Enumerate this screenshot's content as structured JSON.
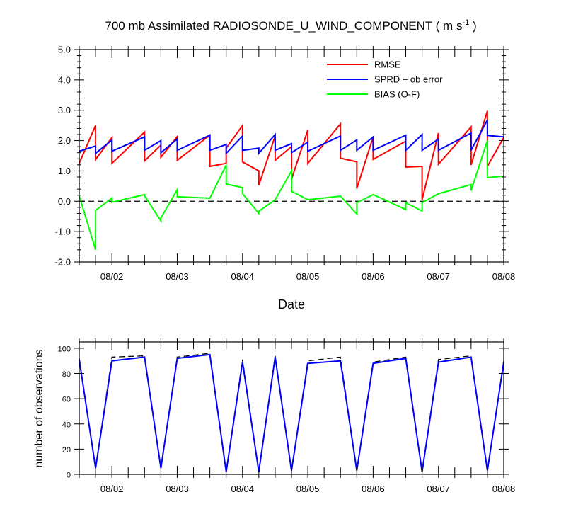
{
  "chart_data": [
    {
      "type": "line",
      "title": "700 mb Assimilated RADIOSONDE_U_WIND_COMPONENT ( m s",
      "title_sup": "-1",
      "title_end": " )",
      "xlabel": "Date",
      "ylabel": "",
      "xlim": [
        0.5,
        7.0
      ],
      "ylim": [
        -2.0,
        5.0
      ],
      "yticks": [
        -2,
        -1,
        0,
        1,
        2,
        3,
        4,
        5
      ],
      "ytick_labels": [
        "-2.0",
        "-1.0",
        "0.0",
        "1.0",
        "2.0",
        "3.0",
        "4.0",
        "5.0"
      ],
      "xticks": [
        1,
        2,
        3,
        4,
        5,
        6,
        7
      ],
      "xtick_labels": [
        "08/02",
        "08/03",
        "08/04",
        "08/05",
        "08/06",
        "08/07",
        "08/08"
      ],
      "zero_line": {
        "value": 0,
        "style": "dashed",
        "color": "#000000"
      },
      "legend_position": "top-right",
      "series": [
        {
          "name": "RMSE",
          "color": "#ff0000",
          "points": [
            [
              0.5,
              1.25
            ],
            [
              0.75,
              2.5
            ],
            [
              0.75,
              1.38
            ],
            [
              1.0,
              2.1
            ],
            [
              1.0,
              1.25
            ],
            [
              1.5,
              2.28
            ],
            [
              1.5,
              1.33
            ],
            [
              1.75,
              1.85
            ],
            [
              1.75,
              1.45
            ],
            [
              2.0,
              2.13
            ],
            [
              2.0,
              1.35
            ],
            [
              2.5,
              2.18
            ],
            [
              2.5,
              1.15
            ],
            [
              2.75,
              1.25
            ],
            [
              2.75,
              1.75
            ],
            [
              3.0,
              2.5
            ],
            [
              3.0,
              1.3
            ],
            [
              3.25,
              1.0
            ],
            [
              3.25,
              0.53
            ],
            [
              3.5,
              2.15
            ],
            [
              3.5,
              1.35
            ],
            [
              3.75,
              1.8
            ],
            [
              3.75,
              0.73
            ],
            [
              4.0,
              2.35
            ],
            [
              4.0,
              1.25
            ],
            [
              4.5,
              2.55
            ],
            [
              4.5,
              1.42
            ],
            [
              4.75,
              1.3
            ],
            [
              4.75,
              0.42
            ],
            [
              5.0,
              2.12
            ],
            [
              5.0,
              1.38
            ],
            [
              5.5,
              1.98
            ],
            [
              5.5,
              1.13
            ],
            [
              5.75,
              1.15
            ],
            [
              5.75,
              0.05
            ],
            [
              6.0,
              2.25
            ],
            [
              6.0,
              1.22
            ],
            [
              6.5,
              2.45
            ],
            [
              6.5,
              1.2
            ],
            [
              6.75,
              2.98
            ],
            [
              6.75,
              1.15
            ],
            [
              7.0,
              2.1
            ]
          ]
        },
        {
          "name": "SPRD + ob error",
          "color": "#0000ff",
          "points": [
            [
              0.5,
              1.65
            ],
            [
              0.75,
              1.82
            ],
            [
              0.75,
              1.58
            ],
            [
              1.0,
              2.02
            ],
            [
              1.0,
              1.65
            ],
            [
              1.5,
              2.12
            ],
            [
              1.5,
              1.68
            ],
            [
              1.75,
              2.0
            ],
            [
              1.75,
              1.6
            ],
            [
              2.0,
              2.05
            ],
            [
              2.0,
              1.68
            ],
            [
              2.5,
              2.18
            ],
            [
              2.5,
              1.68
            ],
            [
              2.75,
              1.87
            ],
            [
              2.75,
              1.58
            ],
            [
              3.0,
              2.15
            ],
            [
              3.0,
              1.68
            ],
            [
              3.25,
              1.75
            ],
            [
              3.25,
              1.58
            ],
            [
              3.5,
              2.2
            ],
            [
              3.5,
              1.68
            ],
            [
              3.75,
              1.9
            ],
            [
              3.75,
              1.6
            ],
            [
              4.0,
              1.95
            ],
            [
              4.0,
              1.65
            ],
            [
              4.5,
              2.15
            ],
            [
              4.5,
              1.68
            ],
            [
              4.75,
              2.02
            ],
            [
              4.75,
              1.68
            ],
            [
              5.0,
              2.12
            ],
            [
              5.0,
              1.68
            ],
            [
              5.5,
              2.18
            ],
            [
              5.5,
              1.68
            ],
            [
              5.75,
              2.2
            ],
            [
              5.75,
              1.68
            ],
            [
              6.0,
              2.05
            ],
            [
              6.0,
              1.68
            ],
            [
              6.5,
              2.25
            ],
            [
              6.5,
              1.68
            ],
            [
              6.75,
              2.68
            ],
            [
              6.75,
              2.17
            ],
            [
              7.0,
              2.12
            ]
          ]
        },
        {
          "name": "BIAS (O-F)",
          "color": "#00ff00",
          "points": [
            [
              0.5,
              0.18
            ],
            [
              0.75,
              -1.6
            ],
            [
              0.75,
              -0.3
            ],
            [
              1.0,
              0.1
            ],
            [
              1.0,
              -0.03
            ],
            [
              1.5,
              0.22
            ],
            [
              1.5,
              0.18
            ],
            [
              1.75,
              -0.65
            ],
            [
              1.75,
              -0.55
            ],
            [
              2.0,
              0.38
            ],
            [
              2.0,
              0.15
            ],
            [
              2.5,
              0.1
            ],
            [
              2.75,
              1.2
            ],
            [
              2.75,
              0.57
            ],
            [
              3.0,
              0.45
            ],
            [
              3.0,
              0.25
            ],
            [
              3.25,
              -0.4
            ],
            [
              3.25,
              -0.33
            ],
            [
              3.5,
              0.05
            ],
            [
              3.75,
              1.0
            ],
            [
              3.75,
              0.33
            ],
            [
              4.0,
              0.05
            ],
            [
              4.5,
              0.17
            ],
            [
              4.75,
              -0.42
            ],
            [
              4.75,
              -0.05
            ],
            [
              5.0,
              0.22
            ],
            [
              5.5,
              -0.27
            ],
            [
              5.5,
              -0.05
            ],
            [
              5.75,
              -0.32
            ],
            [
              5.75,
              -0.05
            ],
            [
              6.0,
              0.25
            ],
            [
              6.5,
              0.55
            ],
            [
              6.5,
              0.35
            ],
            [
              6.75,
              2.0
            ],
            [
              6.75,
              0.78
            ],
            [
              7.0,
              0.83
            ]
          ]
        }
      ]
    },
    {
      "type": "line",
      "title": "",
      "xlabel": "",
      "ylabel": "number of observations",
      "xlim": [
        0.5,
        7.0
      ],
      "ylim": [
        0,
        105
      ],
      "yticks": [
        0,
        20,
        40,
        60,
        80,
        100
      ],
      "ytick_labels": [
        "0",
        "20",
        "40",
        "60",
        "80",
        "100"
      ],
      "xticks": [
        1,
        2,
        3,
        4,
        5,
        6,
        7
      ],
      "xtick_labels": [
        "08/02",
        "08/03",
        "08/04",
        "08/05",
        "08/06",
        "08/07",
        "08/08"
      ],
      "series": [
        {
          "color": "#000000",
          "style": "dashed",
          "points": [
            [
              0.5,
              92
            ],
            [
              0.75,
              5
            ],
            [
              1.0,
              93
            ],
            [
              1.5,
              94
            ],
            [
              1.75,
              5
            ],
            [
              2.0,
              93
            ],
            [
              2.5,
              96
            ],
            [
              2.75,
              2
            ],
            [
              3.0,
              91
            ],
            [
              3.25,
              2
            ],
            [
              3.5,
              94
            ],
            [
              3.75,
              3
            ],
            [
              4.0,
              90
            ],
            [
              4.5,
              93
            ],
            [
              4.75,
              3
            ],
            [
              5.0,
              89
            ],
            [
              5.5,
              93
            ],
            [
              5.75,
              2
            ],
            [
              6.0,
              91
            ],
            [
              6.5,
              94
            ],
            [
              6.75,
              3
            ],
            [
              7.0,
              90
            ]
          ]
        },
        {
          "color": "#0000ff",
          "style": "solid",
          "points": [
            [
              0.5,
              91
            ],
            [
              0.75,
              5
            ],
            [
              1.0,
              90
            ],
            [
              1.5,
              93
            ],
            [
              1.75,
              5
            ],
            [
              2.0,
              92
            ],
            [
              2.5,
              95
            ],
            [
              2.75,
              2
            ],
            [
              3.0,
              89
            ],
            [
              3.25,
              2
            ],
            [
              3.5,
              93
            ],
            [
              3.75,
              3
            ],
            [
              4.0,
              88
            ],
            [
              4.5,
              90
            ],
            [
              4.75,
              3
            ],
            [
              5.0,
              88
            ],
            [
              5.5,
              92
            ],
            [
              5.75,
              2
            ],
            [
              6.0,
              89
            ],
            [
              6.5,
              93
            ],
            [
              6.75,
              3
            ],
            [
              7.0,
              89
            ]
          ]
        }
      ]
    }
  ]
}
